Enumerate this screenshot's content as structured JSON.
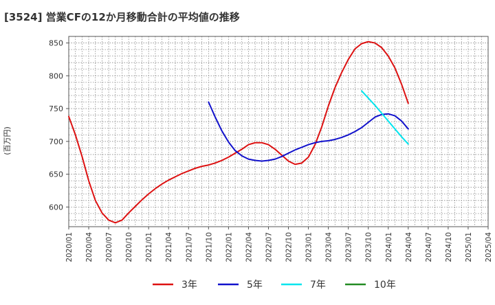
{
  "chart_data": {
    "type": "line",
    "title": "[3524]  営業CFの12か月移動合計の平均値の推移",
    "ylabel": "(百万円)",
    "xlabel": "",
    "ylim": [
      570,
      860
    ],
    "yticks": [
      600,
      650,
      700,
      750,
      800,
      850
    ],
    "x_tick_labels": [
      "2020/01",
      "2020/04",
      "2020/07",
      "2020/10",
      "2021/01",
      "2021/04",
      "2021/07",
      "2021/10",
      "2022/01",
      "2022/04",
      "2022/07",
      "2022/10",
      "2023/01",
      "2023/04",
      "2023/07",
      "2023/10",
      "2024/01",
      "2024/04",
      "2024/07",
      "2024/10",
      "2025/01",
      "2025/04"
    ],
    "grid": true,
    "legend_placement": "bottom",
    "series": [
      {
        "name": "3年",
        "color": "#dd1111",
        "x": [
          "2020/01",
          "2020/02",
          "2020/03",
          "2020/04",
          "2020/05",
          "2020/06",
          "2020/07",
          "2020/08",
          "2020/09",
          "2020/10",
          "2020/11",
          "2020/12",
          "2021/01",
          "2021/02",
          "2021/03",
          "2021/04",
          "2021/05",
          "2021/06",
          "2021/07",
          "2021/08",
          "2021/09",
          "2021/10",
          "2021/11",
          "2021/12",
          "2022/01",
          "2022/02",
          "2022/03",
          "2022/04",
          "2022/05",
          "2022/06",
          "2022/07",
          "2022/08",
          "2022/09",
          "2022/10",
          "2022/11",
          "2022/12",
          "2023/01",
          "2023/02",
          "2023/03",
          "2023/04",
          "2023/05",
          "2023/06",
          "2023/07",
          "2023/08",
          "2023/09",
          "2023/10",
          "2023/11",
          "2023/12",
          "2024/01",
          "2024/02",
          "2024/03",
          "2024/04"
        ],
        "values": [
          738,
          710,
          677,
          640,
          610,
          591,
          580,
          576,
          580,
          591,
          601,
          611,
          620,
          628,
          635,
          641,
          646,
          651,
          655,
          659,
          662,
          664,
          667,
          671,
          676,
          682,
          688,
          695,
          698,
          698,
          695,
          688,
          679,
          670,
          665,
          667,
          676,
          695,
          722,
          754,
          782,
          805,
          825,
          841,
          849,
          852,
          850,
          843,
          830,
          812,
          787,
          758
        ]
      },
      {
        "name": "5年",
        "color": "#1111cc",
        "x": [
          "2021/10",
          "2021/11",
          "2021/12",
          "2022/01",
          "2022/02",
          "2022/03",
          "2022/04",
          "2022/05",
          "2022/06",
          "2022/07",
          "2022/08",
          "2022/09",
          "2022/10",
          "2022/11",
          "2022/12",
          "2023/01",
          "2023/02",
          "2023/03",
          "2023/04",
          "2023/05",
          "2023/06",
          "2023/07",
          "2023/08",
          "2023/09",
          "2023/10",
          "2023/11",
          "2023/12",
          "2024/01",
          "2024/02",
          "2024/03",
          "2024/04"
        ],
        "values": [
          760,
          737,
          716,
          699,
          686,
          678,
          673,
          671,
          670,
          671,
          673,
          677,
          682,
          687,
          691,
          695,
          698,
          700,
          701,
          703,
          706,
          710,
          715,
          721,
          729,
          737,
          741,
          742,
          739,
          731,
          719
        ]
      },
      {
        "name": "7年",
        "color": "#00e5ee",
        "x": [
          "2023/09",
          "2023/10",
          "2023/11",
          "2023/12",
          "2024/01",
          "2024/02",
          "2024/03",
          "2024/04"
        ],
        "values": [
          777,
          766,
          755,
          743,
          731,
          719,
          707,
          696
        ]
      },
      {
        "name": "10年",
        "color": "#228b22",
        "x": [],
        "values": []
      }
    ]
  }
}
